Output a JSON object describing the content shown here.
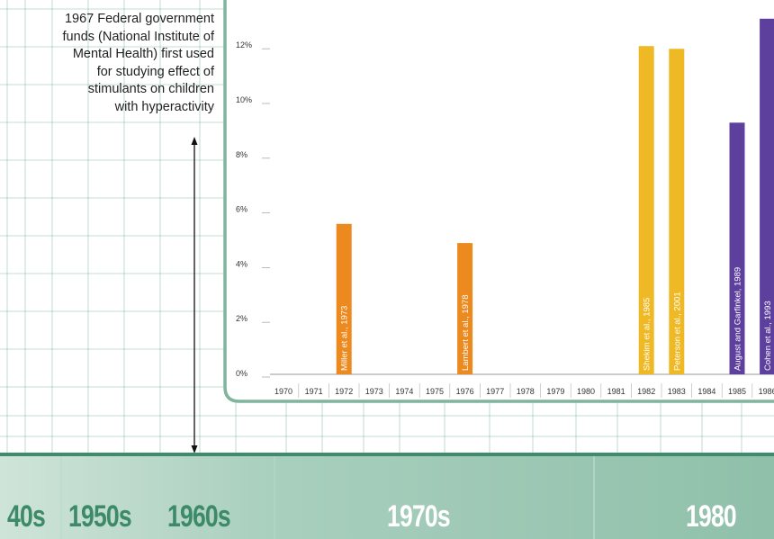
{
  "annotation": {
    "lines": [
      "1967 Federal government",
      "funds (National Institute of",
      "Mental Health) first used",
      "for studying effect of",
      "stimulants on children",
      "with hyperactivity"
    ]
  },
  "colors": {
    "grid": "#1e7a5a",
    "panel_border": "#7fb49d",
    "bar_orange": "#ec8a1f",
    "bar_yellow": "#eeb924",
    "bar_purple": "#5d3f9e",
    "band_light": "#c3ddd0",
    "band_dark": "#3f8c6c"
  },
  "timeline": {
    "decades": [
      "40s",
      "1950s",
      "1960s",
      "1970s",
      "1980"
    ]
  },
  "chart_data": {
    "type": "bar",
    "xlabel": "",
    "ylabel": "",
    "ylim": [
      0,
      13
    ],
    "yticks": [
      "0%",
      "2%",
      "4%",
      "6%",
      "8%",
      "10%",
      "12%"
    ],
    "ytick_values": [
      0,
      2,
      4,
      6,
      8,
      10,
      12
    ],
    "categories": [
      "1970",
      "1971",
      "1972",
      "1973",
      "1974",
      "1975",
      "1976",
      "1977",
      "1978",
      "1979",
      "1980",
      "1981",
      "1982",
      "1983",
      "1984",
      "1985",
      "1986"
    ],
    "bars": [
      {
        "year": "1972",
        "value": 5.5,
        "label": "Miller et al., 1973",
        "color": "#ec8a1f"
      },
      {
        "year": "1976",
        "value": 4.8,
        "label": "Lambert et al., 1978",
        "color": "#ec8a1f"
      },
      {
        "year": "1982",
        "value": 12.0,
        "label": "Shekim et al., 1985",
        "color": "#eeb924"
      },
      {
        "year": "1983",
        "value": 11.9,
        "label": "Peterson et al., 2001",
        "color": "#eeb924"
      },
      {
        "year": "1985",
        "value": 9.2,
        "label": "August and Garfinkel, 1989",
        "color": "#5d3f9e"
      },
      {
        "year": "1986",
        "value": 13.0,
        "label": "Cohen et al., 1993",
        "color": "#5d3f9e"
      }
    ],
    "grid": false,
    "legend": "none"
  }
}
